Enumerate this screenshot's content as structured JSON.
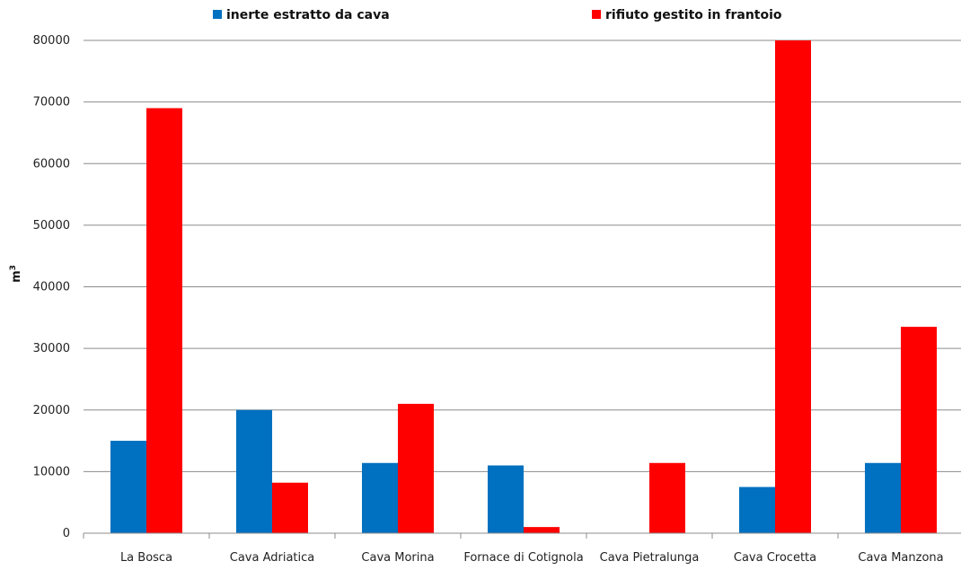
{
  "chart_data": {
    "type": "bar",
    "categories": [
      "La Bosca",
      "Cava Adriatica",
      "Cava Morina",
      "Fornace di Cotignola",
      "Cava Pietralunga",
      "Cava Crocetta",
      "Cava Manzona"
    ],
    "series": [
      {
        "name": "inerte estratto da cava",
        "color": "#0070C0",
        "values": [
          15000,
          20000,
          11400,
          11000,
          0,
          7500,
          11400
        ]
      },
      {
        "name": "rifiuto gestito in frantoio",
        "color": "#FF0000",
        "values": [
          69000,
          8200,
          21000,
          1000,
          11400,
          80000,
          33500
        ]
      }
    ],
    "ylabel": "m",
    "ylabel_superscript": "3",
    "ylim": [
      0,
      80000
    ],
    "yticks": [
      0,
      10000,
      20000,
      30000,
      40000,
      50000,
      60000,
      70000,
      80000
    ],
    "grid": true,
    "legend_position": "top"
  }
}
